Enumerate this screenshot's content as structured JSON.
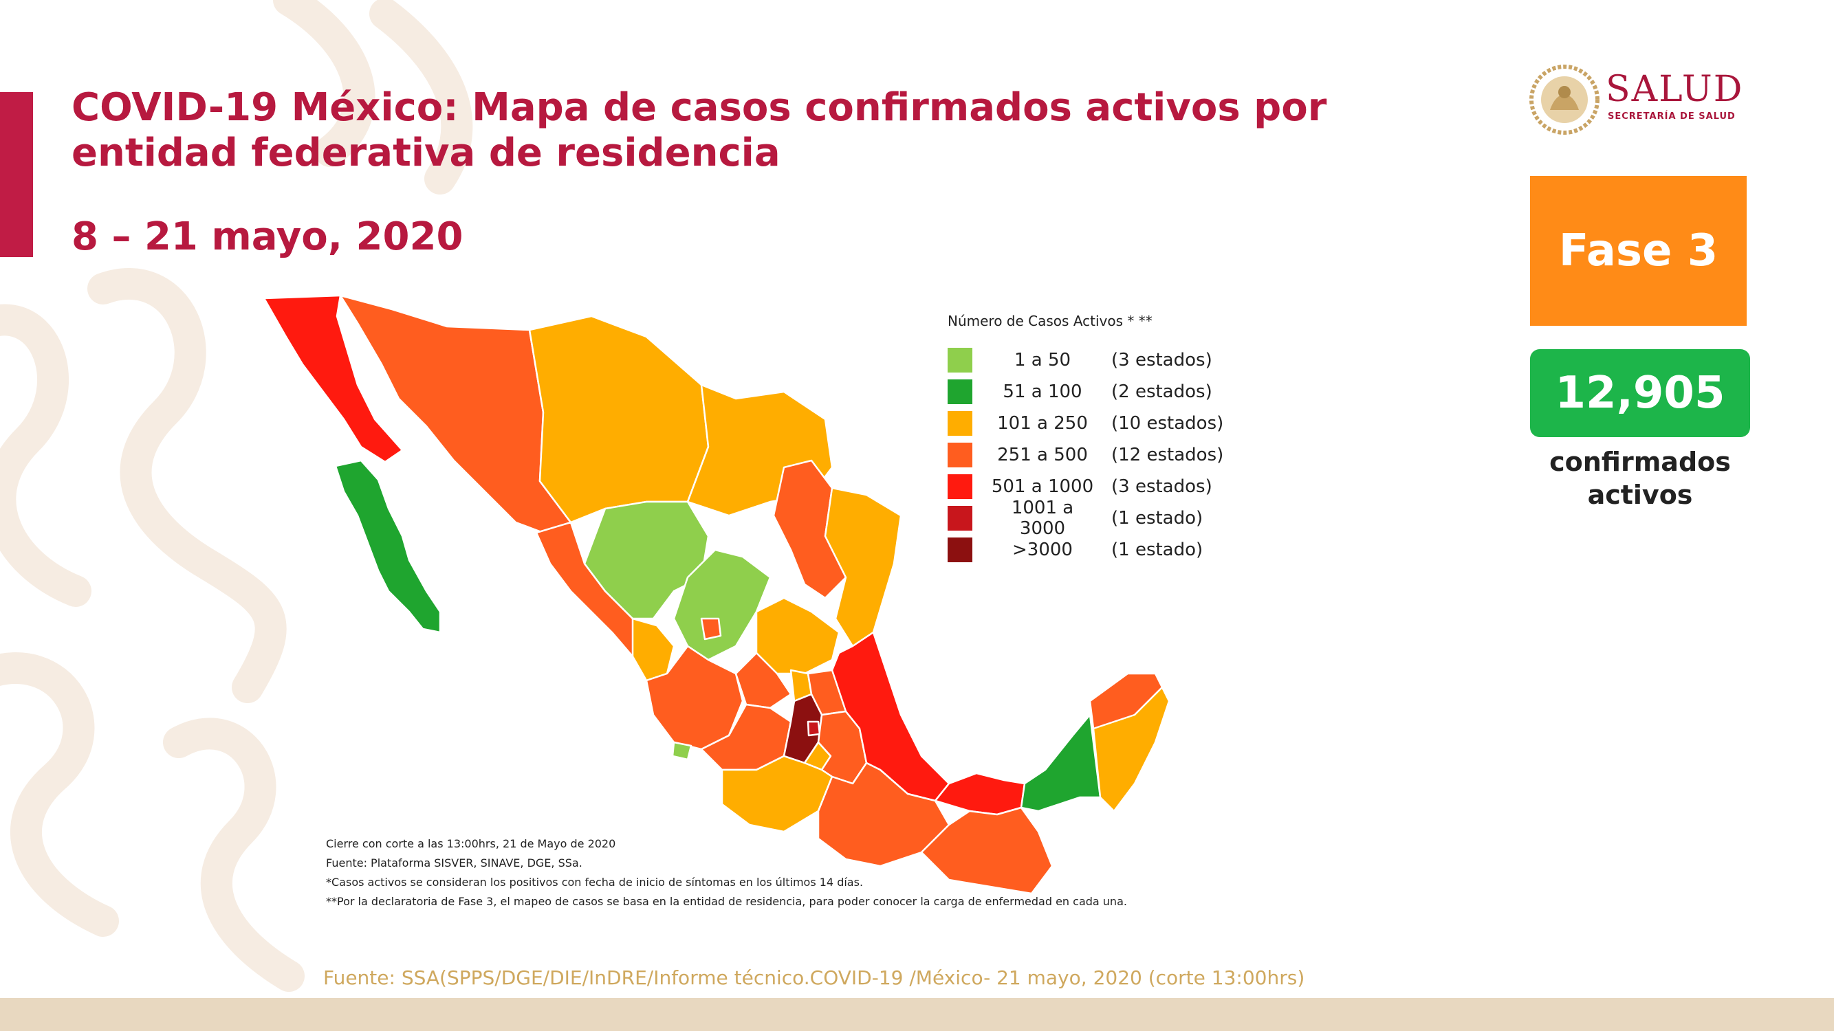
{
  "header": {
    "title": "COVID-19 México: Mapa de casos confirmados activos por entidad federativa de residencia",
    "date_range": "8 – 21 mayo, 2020"
  },
  "logo": {
    "name": "SALUD",
    "subtitle": "SECRETARÍA DE SALUD"
  },
  "phase": {
    "label": "Fase 3",
    "color": "#ff8b17"
  },
  "summary": {
    "count": "12,905",
    "label": "confirmados activos",
    "color": "#1db54a"
  },
  "legend": {
    "title": "Número de Casos Activos * **",
    "items": [
      {
        "range": "1 a 50",
        "states": "(3 estados)",
        "color": "#8fcf4c"
      },
      {
        "range": "51 a 100",
        "states": "(2 estados)",
        "color": "#1fa52f"
      },
      {
        "range": "101 a 250",
        "states": "(10 estados)",
        "color": "#ffad00"
      },
      {
        "range": "251 a 500",
        "states": "(12 estados)",
        "color": "#ff5d1f"
      },
      {
        "range": "501 a 1000",
        "states": "(3 estados)",
        "color": "#ff1a0f"
      },
      {
        "range": "1001 a 3000",
        "states": "(1 estado)",
        "color": "#c8161c"
      },
      {
        "range": ">3000",
        "states": "(1 estado)",
        "color": "#8c1010"
      }
    ]
  },
  "notes": [
    "Cierre con corte a las 13:00hrs, 21 de Mayo de 2020",
    "Fuente: Plataforma SISVER, SINAVE, DGE, SSa.",
    "*Casos activos se consideran los positivos con fecha de inicio de síntomas en los últimos 14 días.",
    "**Por la declaratoria de Fase 3, el mapeo de casos se basa en la entidad de residencia, para poder conocer la carga de enfermedad en cada una."
  ],
  "source": "Fuente: SSA(SPPS/DGE/DIE/InDRE/Informe técnico.COVID-19 /México- 21 mayo, 2020 (corte 13:00hrs)"
}
